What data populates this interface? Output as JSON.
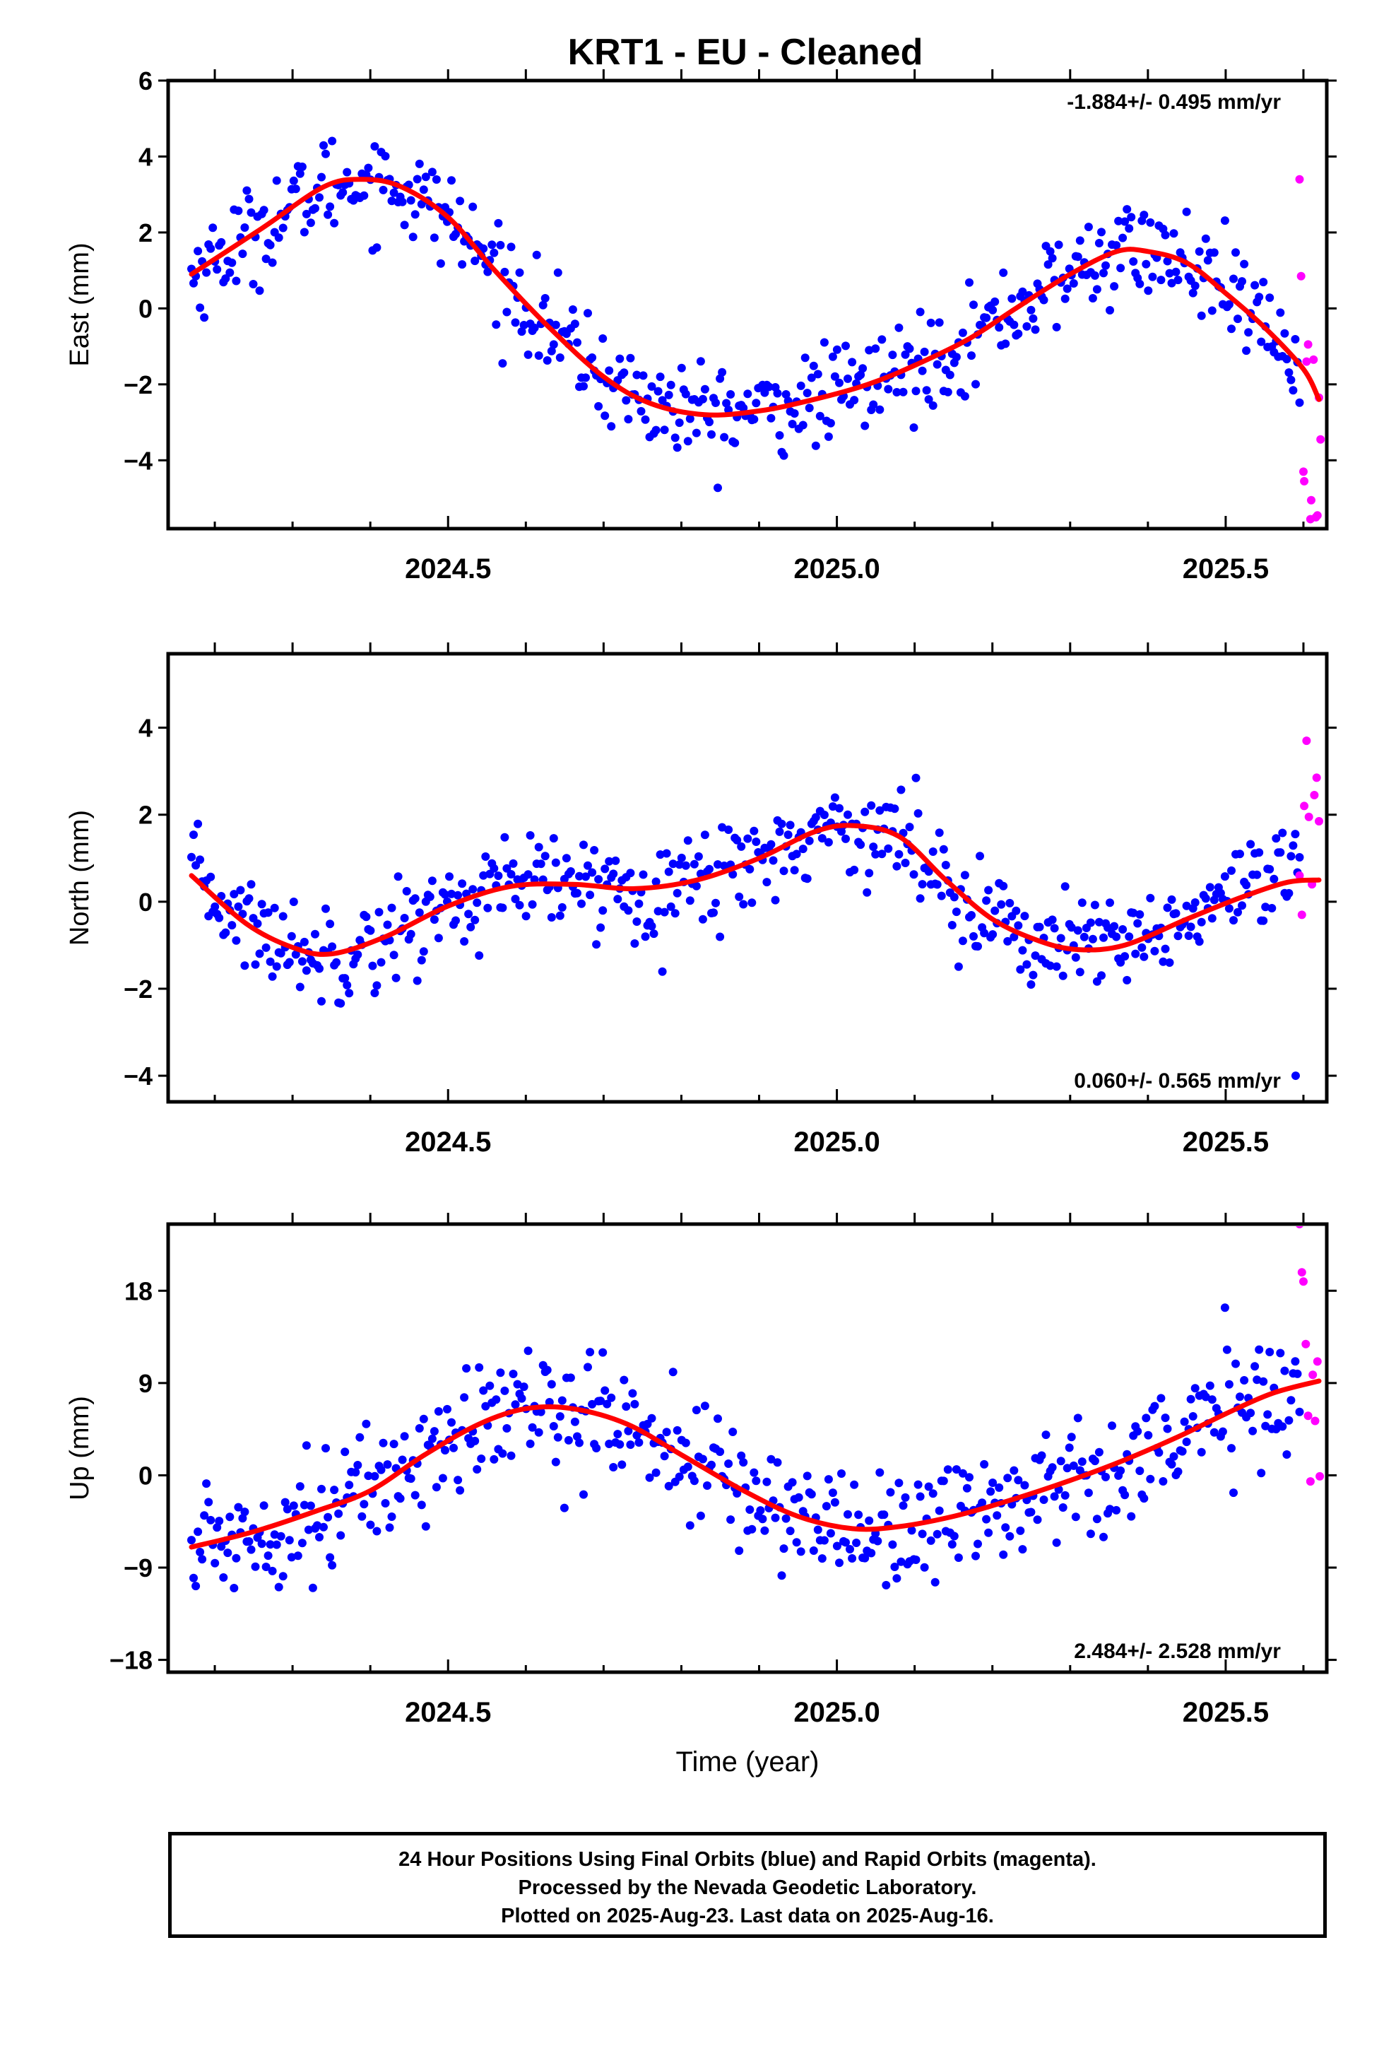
{
  "title": "KRT1  - EU - Cleaned",
  "footer": {
    "line1": "24 Hour Positions Using Final Orbits (blue) and Rapid Orbits (magenta).",
    "line2": "Processed by the Nevada Geodetic Laboratory.",
    "line3": "Plotted on 2025-Aug-23. Last data on 2025-Aug-16."
  },
  "colors": {
    "final": "#0000ff",
    "rapid": "#ff00ff",
    "fit": "#ff0000",
    "frame": "#000000"
  },
  "chart_data": [
    {
      "type": "scatter",
      "panel": "east",
      "xlabel": "",
      "ylabel": "East (mm)",
      "rate": "-1.884+/- 0.495 mm/yr",
      "xlim": [
        2024.14,
        2025.63
      ],
      "ylim": [
        -5.8,
        6.0
      ],
      "xticks": [
        2024.5,
        2025.0,
        2025.5
      ],
      "xtick_labels": [
        "2024.5",
        "2025.0",
        "2025.5"
      ],
      "yticks": [
        -4,
        -2,
        0,
        2,
        4,
        6
      ],
      "ytick_labels": [
        "−4",
        "−2",
        "0",
        "2",
        "4",
        "6"
      ],
      "grid": false,
      "fit": {
        "x": [
          2024.17,
          2024.26,
          2024.34,
          2024.39,
          2024.44,
          2024.5,
          2024.56,
          2024.63,
          2024.7,
          2024.76,
          2024.83,
          2024.9,
          2024.97,
          2025.04,
          2025.1,
          2025.17,
          2025.23,
          2025.3,
          2025.36,
          2025.4,
          2025.45,
          2025.5,
          2025.55,
          2025.6,
          2025.62
        ],
        "y": [
          0.9,
          2.1,
          3.2,
          3.4,
          3.2,
          2.4,
          1.0,
          -0.5,
          -1.8,
          -2.5,
          -2.8,
          -2.7,
          -2.4,
          -2.0,
          -1.5,
          -0.8,
          0.0,
          0.9,
          1.5,
          1.5,
          1.2,
          0.4,
          -0.5,
          -1.6,
          -2.4
        ]
      },
      "final_amplitude": 3.4,
      "final_noise": 0.85,
      "final_range": [
        2024.17,
        2025.595
      ],
      "rapid": {
        "x": [
          2025.595,
          2025.597,
          2025.6,
          2025.601,
          2025.604,
          2025.606,
          2025.609,
          2025.61,
          2025.613,
          2025.616,
          2025.618,
          2025.62,
          2025.622
        ],
        "y": [
          3.4,
          0.85,
          -4.3,
          -4.55,
          -1.4,
          -0.95,
          -5.55,
          -5.05,
          -1.35,
          -5.5,
          -5.45,
          -2.35,
          -3.45
        ]
      }
    },
    {
      "type": "scatter",
      "panel": "north",
      "xlabel": "",
      "ylabel": "North (mm)",
      "rate": "0.060+/- 0.565 mm/yr",
      "xlim": [
        2024.14,
        2025.63
      ],
      "ylim": [
        -4.6,
        5.7
      ],
      "xticks": [
        2024.5,
        2025.0,
        2025.5
      ],
      "xtick_labels": [
        "2024.5",
        "2025.0",
        "2025.5"
      ],
      "yticks": [
        -4,
        -2,
        0,
        2,
        4
      ],
      "ytick_labels": [
        "−4",
        "−2",
        "0",
        "2",
        "4"
      ],
      "grid": false,
      "fit": {
        "x": [
          2024.17,
          2024.24,
          2024.3,
          2024.35,
          2024.42,
          2024.5,
          2024.58,
          2024.66,
          2024.74,
          2024.82,
          2024.9,
          2024.97,
          2025.02,
          2025.08,
          2025.14,
          2025.2,
          2025.26,
          2025.31,
          2025.37,
          2025.45,
          2025.52,
          2025.58,
          2025.62
        ],
        "y": [
          0.6,
          -0.5,
          -1.05,
          -1.2,
          -0.8,
          -0.1,
          0.35,
          0.4,
          0.3,
          0.5,
          1.0,
          1.6,
          1.75,
          1.5,
          0.5,
          -0.4,
          -0.9,
          -1.1,
          -1.0,
          -0.4,
          0.1,
          0.45,
          0.5
        ]
      },
      "final_amplitude": 1.2,
      "final_noise": 0.75,
      "final_range": [
        2024.17,
        2025.595
      ],
      "rapid": {
        "x": [
          2025.595,
          2025.598,
          2025.601,
          2025.604,
          2025.607,
          2025.611,
          2025.614,
          2025.617,
          2025.62
        ],
        "y": [
          0.6,
          -0.3,
          2.2,
          3.7,
          1.95,
          0.4,
          2.45,
          2.85,
          1.85
        ]
      },
      "extra_final": {
        "x": [
          2025.59
        ],
        "y": [
          -4.0
        ]
      }
    },
    {
      "type": "scatter",
      "panel": "up",
      "xlabel": "Time (year)",
      "ylabel": "Up (mm)",
      "rate": "2.484+/- 2.528 mm/yr",
      "xlim": [
        2024.14,
        2025.63
      ],
      "ylim": [
        -19.2,
        24.5
      ],
      "xticks": [
        2024.5,
        2025.0,
        2025.5
      ],
      "xtick_labels": [
        "2024.5",
        "2025.0",
        "2025.5"
      ],
      "yticks": [
        -18,
        -9,
        0,
        9,
        18
      ],
      "ytick_labels": [
        "−18",
        "−9",
        "0",
        "9",
        "18"
      ],
      "grid": false,
      "fit": {
        "x": [
          2024.17,
          2024.25,
          2024.33,
          2024.4,
          2024.47,
          2024.54,
          2024.6,
          2024.66,
          2024.73,
          2024.8,
          2024.88,
          2024.95,
          2025.02,
          2025.08,
          2025.15,
          2025.22,
          2025.3,
          2025.37,
          2025.44,
          2025.5,
          2025.56,
          2025.62
        ],
        "y": [
          -7.0,
          -5.5,
          -3.5,
          -1.5,
          2.0,
          5.0,
          6.5,
          6.5,
          5.0,
          2.0,
          -1.5,
          -4.0,
          -5.2,
          -5.0,
          -4.0,
          -2.5,
          -0.5,
          1.5,
          3.8,
          6.0,
          8.0,
          9.2
        ]
      },
      "final_amplitude": 6.5,
      "final_noise": 4.0,
      "final_range": [
        2024.17,
        2025.595
      ],
      "rapid": {
        "x": [
          2025.595,
          2025.598,
          2025.6,
          2025.603,
          2025.606,
          2025.609,
          2025.612,
          2025.615,
          2025.618,
          2025.621
        ],
        "y": [
          24.5,
          19.8,
          18.9,
          12.8,
          5.8,
          -0.6,
          9.8,
          5.3,
          11.1,
          -0.1
        ]
      }
    }
  ]
}
